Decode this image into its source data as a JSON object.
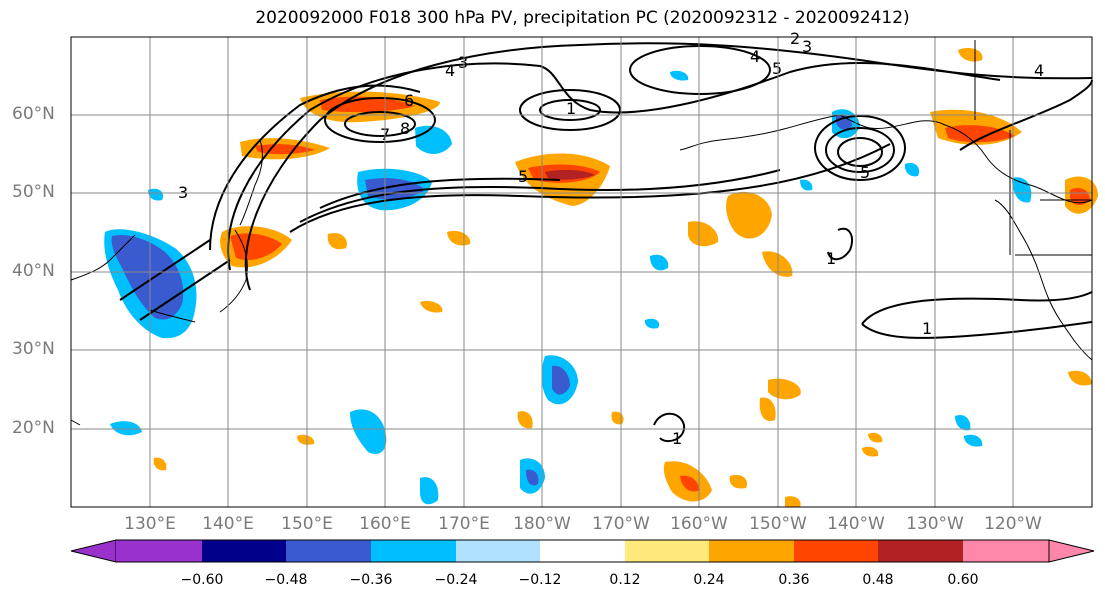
{
  "title": "2020092000 F018 300 hPa PV, precipitation PC (2020092312 - 2020092412)",
  "map": {
    "lat_labels": [
      "60°N",
      "50°N",
      "40°N",
      "30°N",
      "20°N"
    ],
    "lon_labels": [
      "130°E",
      "140°E",
      "150°E",
      "160°E",
      "170°E",
      "180°W",
      "170°W",
      "160°W",
      "150°W",
      "140°W",
      "130°W",
      "120°W"
    ],
    "pv_contour_labels": [
      "1",
      "2",
      "3",
      "4",
      "5",
      "6",
      "7",
      "8"
    ]
  },
  "colorbar": {
    "ticks": [
      "−0.60",
      "−0.48",
      "−0.36",
      "−0.24",
      "−0.12",
      "0.12",
      "0.24",
      "0.36",
      "0.48",
      "0.60"
    ],
    "colors": [
      "#9932cc",
      "#00008b",
      "#3a5bd0",
      "#00bfff",
      "#b0e2ff",
      "#ffffff",
      "#ffe87c",
      "#ffa500",
      "#ff4500",
      "#b22222",
      "#ff88aa"
    ]
  }
}
